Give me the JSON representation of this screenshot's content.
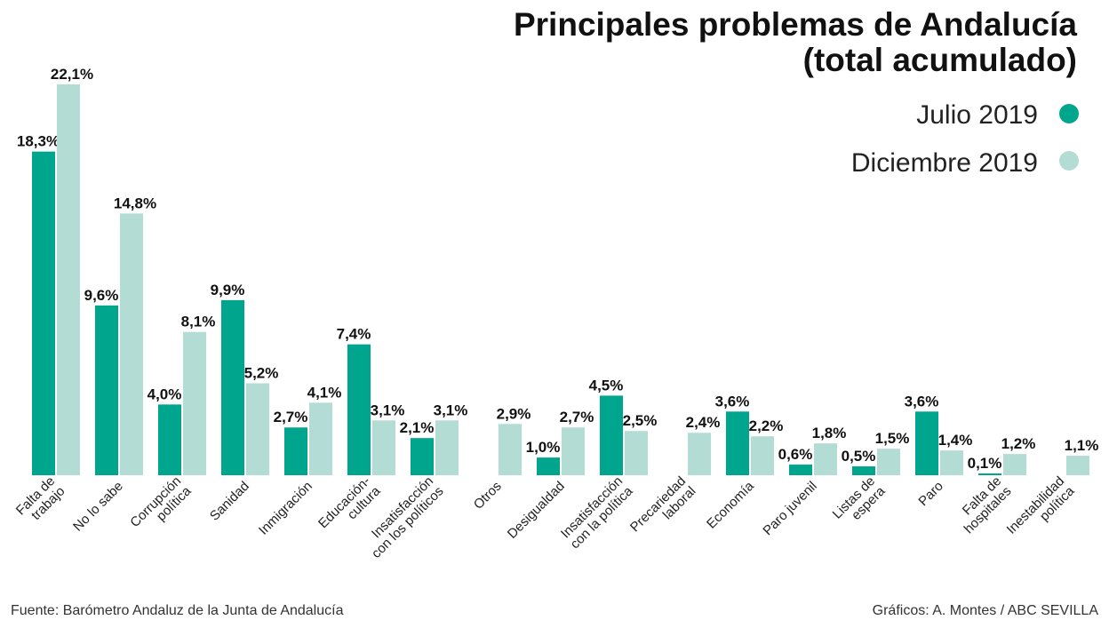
{
  "chart_data": {
    "type": "bar",
    "title": "Principales problemas de Andalucía",
    "subtitle": "(total acumulado)",
    "categories": [
      [
        "Falta de",
        "trabajo"
      ],
      [
        "No lo sabe"
      ],
      [
        "Corrupción",
        "política"
      ],
      [
        "Sanidad"
      ],
      [
        "Inmigración"
      ],
      [
        "Educación-",
        "cultura"
      ],
      [
        "Insatisfacción",
        "con los políticos"
      ],
      [
        "Otros"
      ],
      [
        "Desigualdad"
      ],
      [
        "Insatisfacción",
        "con la política"
      ],
      [
        "Precariedad",
        "laboral"
      ],
      [
        "Economía"
      ],
      [
        "Paro juvenil"
      ],
      [
        "Listas de",
        "espera"
      ],
      [
        "Paro"
      ],
      [
        "Falta de",
        "hospitales"
      ],
      [
        "Inestabilidad",
        "política"
      ]
    ],
    "series": [
      {
        "name": "Julio 2019",
        "color": "#00a58e",
        "values": [
          18.3,
          9.6,
          4.0,
          9.9,
          2.7,
          7.4,
          2.1,
          null,
          1.0,
          4.5,
          null,
          3.6,
          0.6,
          0.5,
          3.6,
          0.1,
          null
        ],
        "labels": [
          "18,3%",
          "9,6%",
          "4,0%",
          "9,9%",
          "2,7%",
          "7,4%",
          "2,1%",
          null,
          "1,0%",
          "4,5%",
          null,
          "3,6%",
          "0,6%",
          "0,5%",
          "3,6%",
          "0,1%",
          null
        ]
      },
      {
        "name": "Diciembre 2019",
        "color": "#b3ddd4",
        "values": [
          22.1,
          14.8,
          8.1,
          5.2,
          4.1,
          3.1,
          3.1,
          2.9,
          2.7,
          2.5,
          2.4,
          2.2,
          1.8,
          1.5,
          1.4,
          1.2,
          1.1
        ],
        "labels": [
          "22,1%",
          "14,8%",
          "8,1%",
          "5,2%",
          "4,1%",
          "3,1%",
          "3,1%",
          "2,9%",
          "2,7%",
          "2,5%",
          "2,4%",
          "2,2%",
          "1,8%",
          "1,5%",
          "1,4%",
          "1,2%",
          "1,1%"
        ]
      }
    ],
    "ylim": [
      0,
      22.1
    ],
    "grid": false,
    "legend_position": "top-right"
  },
  "footer": {
    "source": "Fuente: Barómetro Andaluz de la Junta de Andalucía",
    "credit": "Gráficos: A. Montes / ABC SEVILLA"
  }
}
